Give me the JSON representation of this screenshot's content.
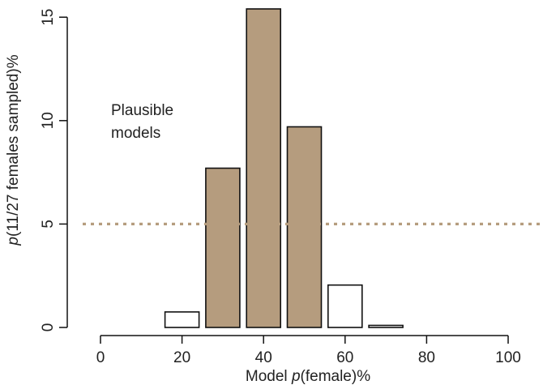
{
  "chart_data": {
    "type": "bar",
    "categories": [
      "0",
      "10",
      "20",
      "30",
      "40",
      "50",
      "60",
      "70",
      "80",
      "90",
      "100"
    ],
    "values": [
      0,
      0,
      0.75,
      7.7,
      15.4,
      9.7,
      2.05,
      0.1,
      0,
      0,
      0
    ],
    "highlighted": [
      false,
      false,
      false,
      true,
      true,
      true,
      false,
      false,
      false,
      false,
      false
    ],
    "xticks": [
      "0",
      "20",
      "40",
      "60",
      "80",
      "100"
    ],
    "yticks": [
      "0",
      "5",
      "10",
      "15"
    ],
    "ylim": [
      0,
      15.4
    ],
    "xlabel_parts": [
      "Model ",
      "p",
      "(female)%"
    ],
    "ylabel_parts": [
      "p",
      "(11/27 females sampled)%"
    ],
    "threshold": {
      "value": 5,
      "color": "#b59c7e",
      "style": "dotted"
    },
    "annotation_lines": [
      "Plausible",
      "models"
    ],
    "colors": {
      "highlight": "#b59c7e",
      "normal": "#ffffff",
      "edge": "#111111",
      "annotation": "#b59c7e"
    },
    "grid": false,
    "legend": "none"
  }
}
